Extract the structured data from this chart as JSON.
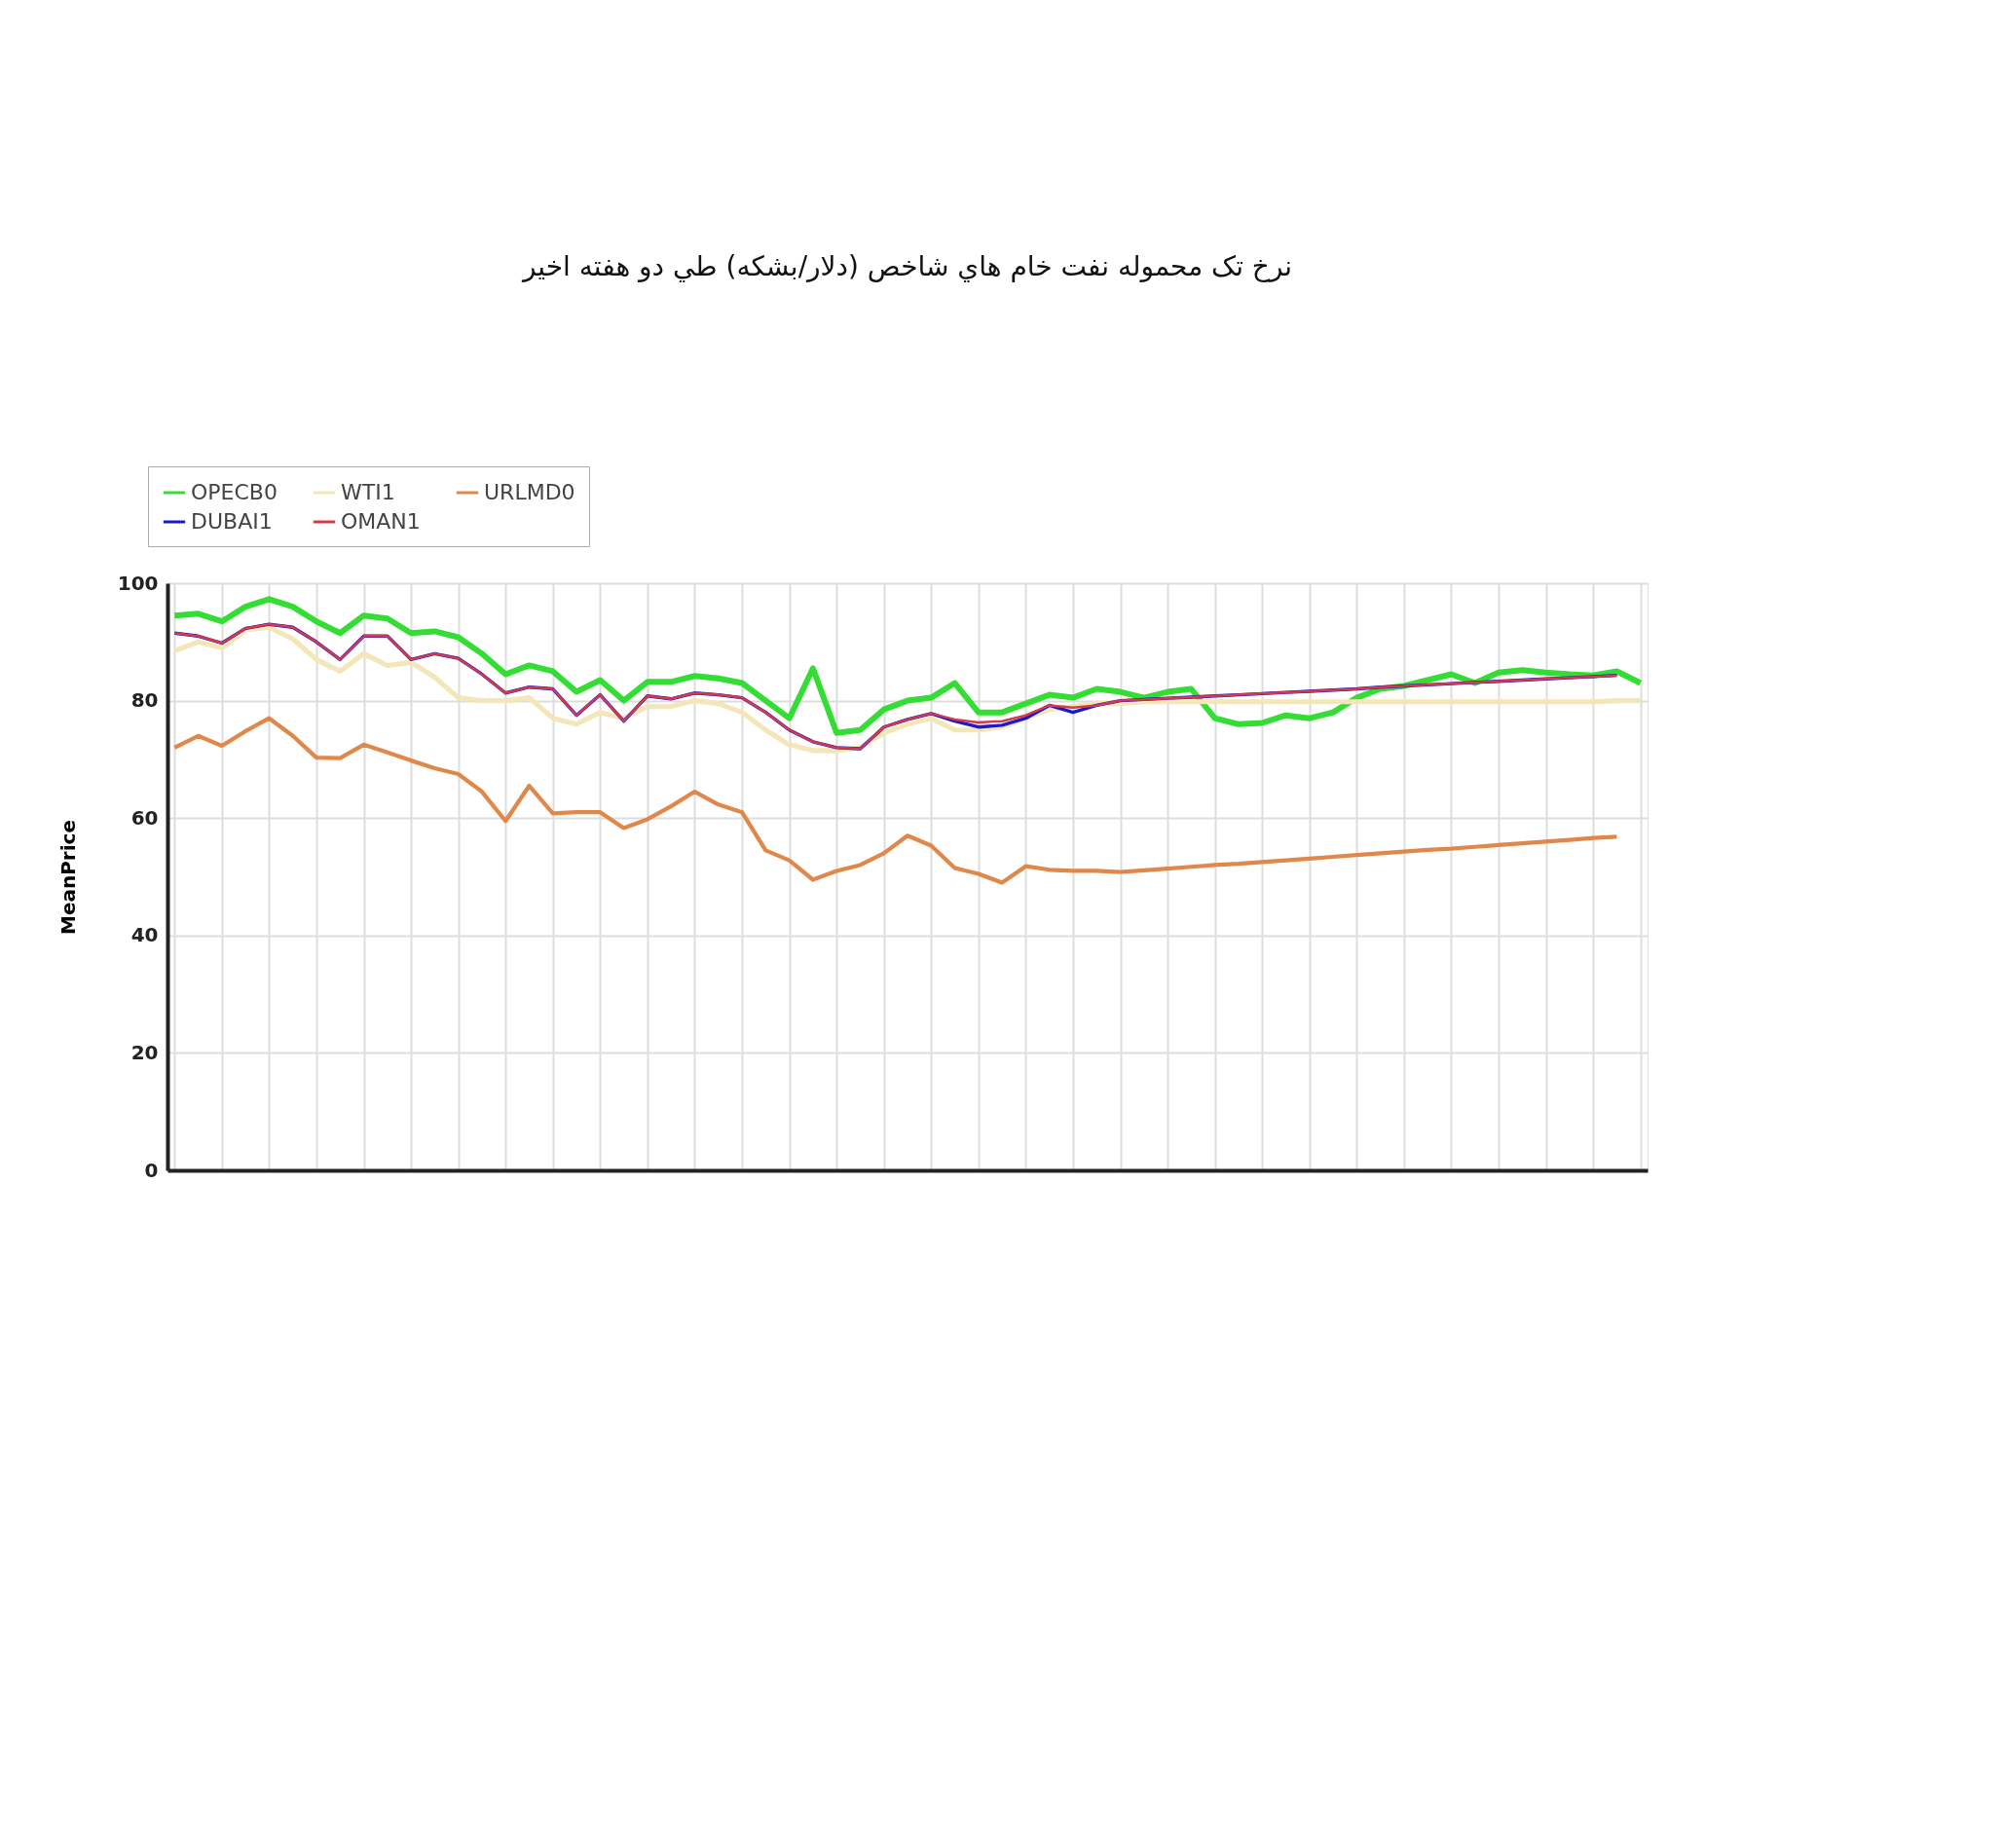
{
  "chart_data": {
    "type": "line",
    "title": "نرخ تک محموله نفت خام هاي شاخص (دلار/بشكه) طي دو هفته اخير",
    "ylabel": "MeanPrice",
    "categories": [
      null,
      null,
      null,
      null,
      null,
      null,
      null,
      null,
      null,
      null,
      null,
      null,
      null,
      null,
      null,
      null,
      null,
      null,
      null,
      null,
      null,
      null,
      null,
      null,
      null,
      null,
      null,
      null,
      null,
      null,
      null,
      null,
      null,
      null,
      null,
      null,
      null,
      null,
      null,
      null,
      null,
      null,
      null,
      null,
      null,
      null,
      null,
      null,
      null,
      null,
      null,
      null,
      null,
      null,
      null,
      null,
      null,
      null,
      null,
      null,
      null,
      null,
      null
    ],
    "series": [
      {
        "name": "OPECB0",
        "color": "#33dd33",
        "values": [
          94.5,
          94.8,
          93.5,
          96,
          97.3,
          96,
          93.5,
          91.5,
          94.5,
          94,
          91.5,
          91.8,
          90.8,
          88,
          84.5,
          86,
          85,
          81.5,
          83.5,
          80,
          83.2,
          83.2,
          84.2,
          83.8,
          83,
          80,
          77,
          85.5,
          74.5,
          75,
          78.5,
          80,
          80.5,
          83,
          78,
          78,
          79.5,
          81,
          80.5,
          82,
          81.5,
          80.5,
          81.5,
          82,
          77,
          76,
          76.2,
          77.5,
          77,
          78,
          80.5,
          82,
          82.5,
          83.5,
          84.5,
          83,
          84.8,
          85.2,
          84.8,
          84.5,
          84.3,
          85,
          83
        ]
      },
      {
        "name": "WTI1",
        "color": "#f3e6b8",
        "values": [
          88.5,
          90,
          89,
          92,
          92.5,
          90.5,
          87,
          85,
          88,
          86,
          86.5,
          84,
          80.5,
          80,
          80,
          80.5,
          77,
          76,
          78,
          77,
          79,
          79,
          80,
          79.5,
          78,
          75,
          72.5,
          71.5,
          71.5,
          72,
          74.5,
          76,
          77,
          75,
          75,
          75.5,
          77,
          78.5,
          79,
          79.5,
          79.5,
          79.8,
          79.8,
          79.8,
          79.8,
          79.8,
          79.8,
          79.8,
          79.8,
          79.8,
          79.8,
          79.8,
          79.8,
          79.8,
          79.8,
          79.8,
          79.8,
          79.8,
          79.8,
          79.8,
          79.8,
          80,
          80
        ]
      },
      {
        "name": "URLMD0",
        "color": "#e0884a",
        "values": [
          72,
          74,
          72.3,
          74.8,
          77,
          74,
          70.3,
          70.2,
          72.5,
          71.2,
          69.8,
          68.5,
          67.5,
          64.5,
          59.5,
          65.5,
          60.8,
          61,
          61,
          58.3,
          59.8,
          62,
          64.5,
          62.3,
          61,
          54.5,
          52.8,
          49.5,
          51,
          52,
          54,
          57,
          55.3,
          51.5,
          50.5,
          49,
          51.8,
          51.2,
          51,
          51,
          50.8,
          51.1,
          51.4,
          51.7,
          52,
          52.2,
          52.5,
          52.8,
          53.1,
          53.4,
          53.7,
          54,
          54.3,
          54.6,
          54.8,
          55.1,
          55.4,
          55.7,
          56,
          56.3,
          56.6,
          56.8,
          null
        ]
      },
      {
        "name": "DUBAI1",
        "color": "#1a1acc",
        "values": [
          91.5,
          91,
          89.8,
          92.3,
          93,
          92.5,
          90,
          87,
          91,
          91,
          87,
          88,
          87.2,
          84.5,
          81.3,
          82.3,
          82,
          77.5,
          81,
          76.5,
          80.8,
          80.3,
          81.3,
          81,
          80.5,
          78,
          75,
          73,
          72,
          71.8,
          75.5,
          76.8,
          77.8,
          76.5,
          75.5,
          75.8,
          77,
          79.2,
          78,
          79.2,
          80,
          80.2,
          80.4,
          80.6,
          80.8,
          81,
          81.2,
          81.4,
          81.6,
          81.8,
          82,
          82.3,
          82.5,
          82.7,
          82.9,
          83.1,
          83.3,
          83.5,
          83.7,
          83.9,
          84.1,
          84.3,
          null
        ]
      },
      {
        "name": "OMAN1",
        "color": "#d43a4a",
        "values": [
          91.5,
          91,
          89.8,
          92.3,
          93,
          92.5,
          90,
          87,
          91,
          91,
          87,
          88,
          87.2,
          84.5,
          81.3,
          82.3,
          82,
          77.5,
          81,
          76.5,
          80.8,
          80.3,
          81.3,
          81,
          80.5,
          78,
          75,
          73,
          72,
          71.8,
          75.5,
          76.8,
          77.8,
          76.8,
          76.3,
          76.5,
          77.5,
          79.2,
          78.8,
          79.2,
          80,
          80.2,
          80.4,
          80.6,
          80.8,
          81,
          81.2,
          81.4,
          81.6,
          81.8,
          82,
          82.3,
          82.5,
          82.7,
          82.9,
          83.1,
          83.3,
          83.5,
          83.7,
          83.9,
          84.1,
          84.3,
          null
        ]
      }
    ],
    "ylim": [
      0,
      100
    ],
    "yticks": [
      0,
      20,
      40,
      60,
      80,
      100
    ],
    "grid": true,
    "legend": "top left",
    "marker": "none",
    "line_style": "solid"
  }
}
